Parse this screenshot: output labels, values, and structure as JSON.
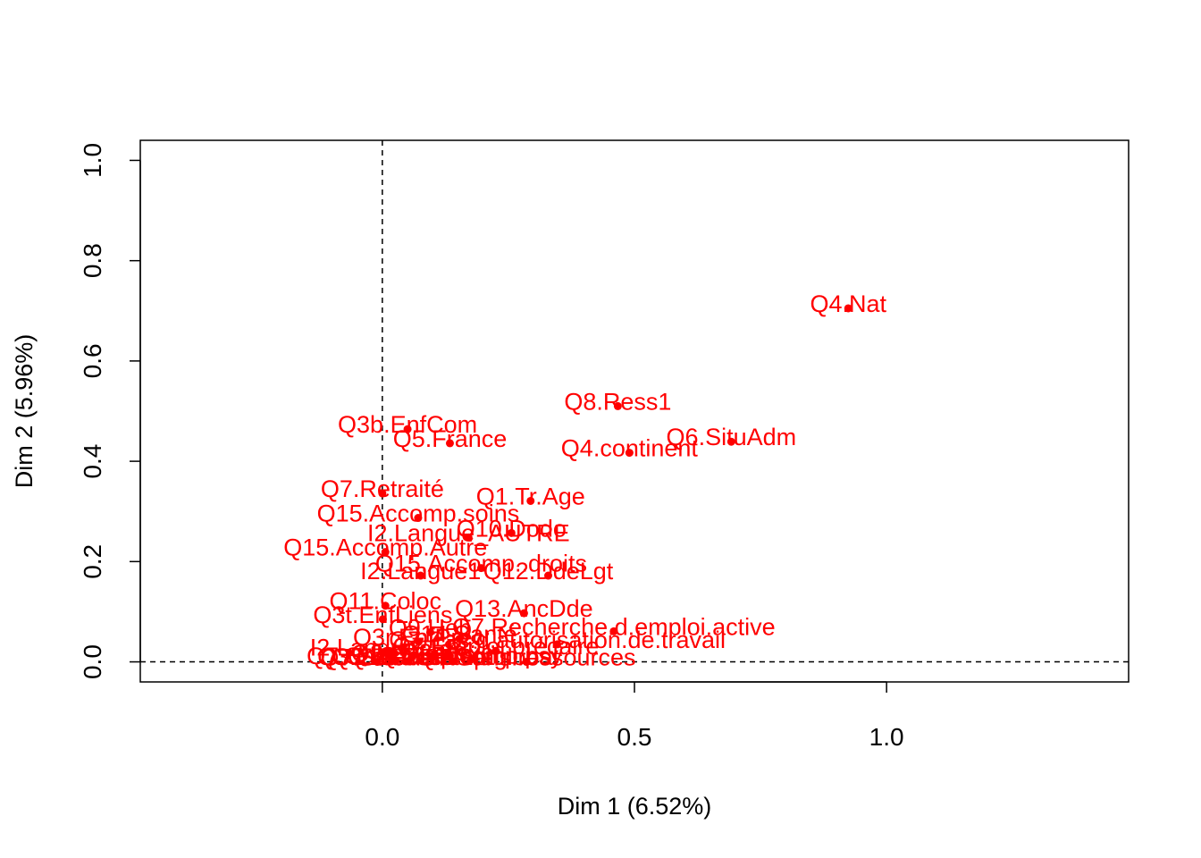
{
  "chart_data": {
    "type": "scatter",
    "xlabel": "Dim 1 (6.52%)",
    "ylabel": "Dim 2 (5.96%)",
    "xlim": [
      -0.48,
      1.48
    ],
    "ylim": [
      -0.04,
      1.04
    ],
    "x_ticks": [
      {
        "value": 0.0,
        "label": "0.0"
      },
      {
        "value": 0.5,
        "label": "0.5"
      },
      {
        "value": 1.0,
        "label": "1.0"
      }
    ],
    "y_ticks": [
      {
        "value": 0.0,
        "label": "0.0"
      },
      {
        "value": 0.2,
        "label": "0.2"
      },
      {
        "value": 0.4,
        "label": "0.4"
      },
      {
        "value": 0.6,
        "label": "0.6"
      },
      {
        "value": 0.8,
        "label": "0.8"
      },
      {
        "value": 1.0,
        "label": "1.0"
      }
    ],
    "reference_lines": {
      "x": 0,
      "y": 0,
      "style": "dashed"
    },
    "grid": false,
    "point_color": "#ff0000",
    "points": [
      {
        "label": "Q4.Nat",
        "x": 0.924,
        "y": 0.705
      },
      {
        "label": "Q8.Ress1",
        "x": 0.467,
        "y": 0.51
      },
      {
        "label": "Q6.SituAdm",
        "x": 0.692,
        "y": 0.439
      },
      {
        "label": "Q4.continent",
        "x": 0.49,
        "y": 0.417
      },
      {
        "label": "Q3b.EnfCom",
        "x": 0.05,
        "y": 0.464
      },
      {
        "label": "Q5.France",
        "x": 0.134,
        "y": 0.436
      },
      {
        "label": "Q7.Retraité",
        "x": 0.0,
        "y": 0.336
      },
      {
        "label": "Q1.Tr.Age",
        "x": 0.294,
        "y": 0.321
      },
      {
        "label": "Q15.Accomp.soins",
        "x": 0.071,
        "y": 0.287
      },
      {
        "label": "Q10.Dodo",
        "x": 0.256,
        "y": 0.257
      },
      {
        "label": "I2.Langue_AUTRE",
        "x": 0.171,
        "y": 0.248
      },
      {
        "label": "Q15.Accomp..droits",
        "x": 0.196,
        "y": 0.187
      },
      {
        "label": "Q15.Accomp.Autre",
        "x": 0.006,
        "y": 0.219
      },
      {
        "label": "Q12.DdeLgt",
        "x": 0.329,
        "y": 0.172
      },
      {
        "label": "I2.Langue1",
        "x": 0.076,
        "y": 0.172
      },
      {
        "label": "Q13.AncDde",
        "x": 0.281,
        "y": 0.097
      },
      {
        "label": "Q11.Coloc",
        "x": 0.006,
        "y": 0.112
      },
      {
        "label": "Q9.Heb",
        "x": 0.095,
        "y": 0.059
      },
      {
        "label": "Q7.Recherche.d.emploi.active",
        "x": 0.459,
        "y": 0.061
      },
      {
        "label": "Q3t.EnfLiens",
        "x": 0.001,
        "y": 0.085
      },
      {
        "label": "Q14.Santé",
        "x": 0.153,
        "y": 0.046
      },
      {
        "label": "Q7.Pas.d.autorisation.de.travail",
        "x": 0.347,
        "y": 0.035
      },
      {
        "label": "Q3r.EnfPrec",
        "x": 0.072,
        "y": 0.04
      },
      {
        "label": "I2.Langue_FR",
        "x": 0.008,
        "y": 0.02
      },
      {
        "label": "Q3.Enfants",
        "x": 0.058,
        "y": 0.008
      },
      {
        "label": "Q7.Emploi.précaire",
        "x": 0.225,
        "y": 0.022
      },
      {
        "label": "Q2.Sexe",
        "x": 0.128,
        "y": 0.01
      },
      {
        "label": "Q7.Sans.emploi",
        "x": 0.02,
        "y": 0.003
      },
      {
        "label": "Q3.EnfPrec.Total",
        "x": 0.052,
        "y": 0.001
      },
      {
        "label": "Q15.Accomp.global",
        "x": 0.14,
        "y": 0.001
      },
      {
        "label": "Q7.Etudiant",
        "x": 0.026,
        "y": 0.001
      },
      {
        "label": "Q7.Salarié",
        "x": -0.01,
        "y": 0.0
      },
      {
        "label": "Q15.Accomp.psy",
        "x": 0.175,
        "y": 0.004
      },
      {
        "label": "Q7.Sans.ressources",
        "x": 0.286,
        "y": 0.0
      }
    ]
  }
}
